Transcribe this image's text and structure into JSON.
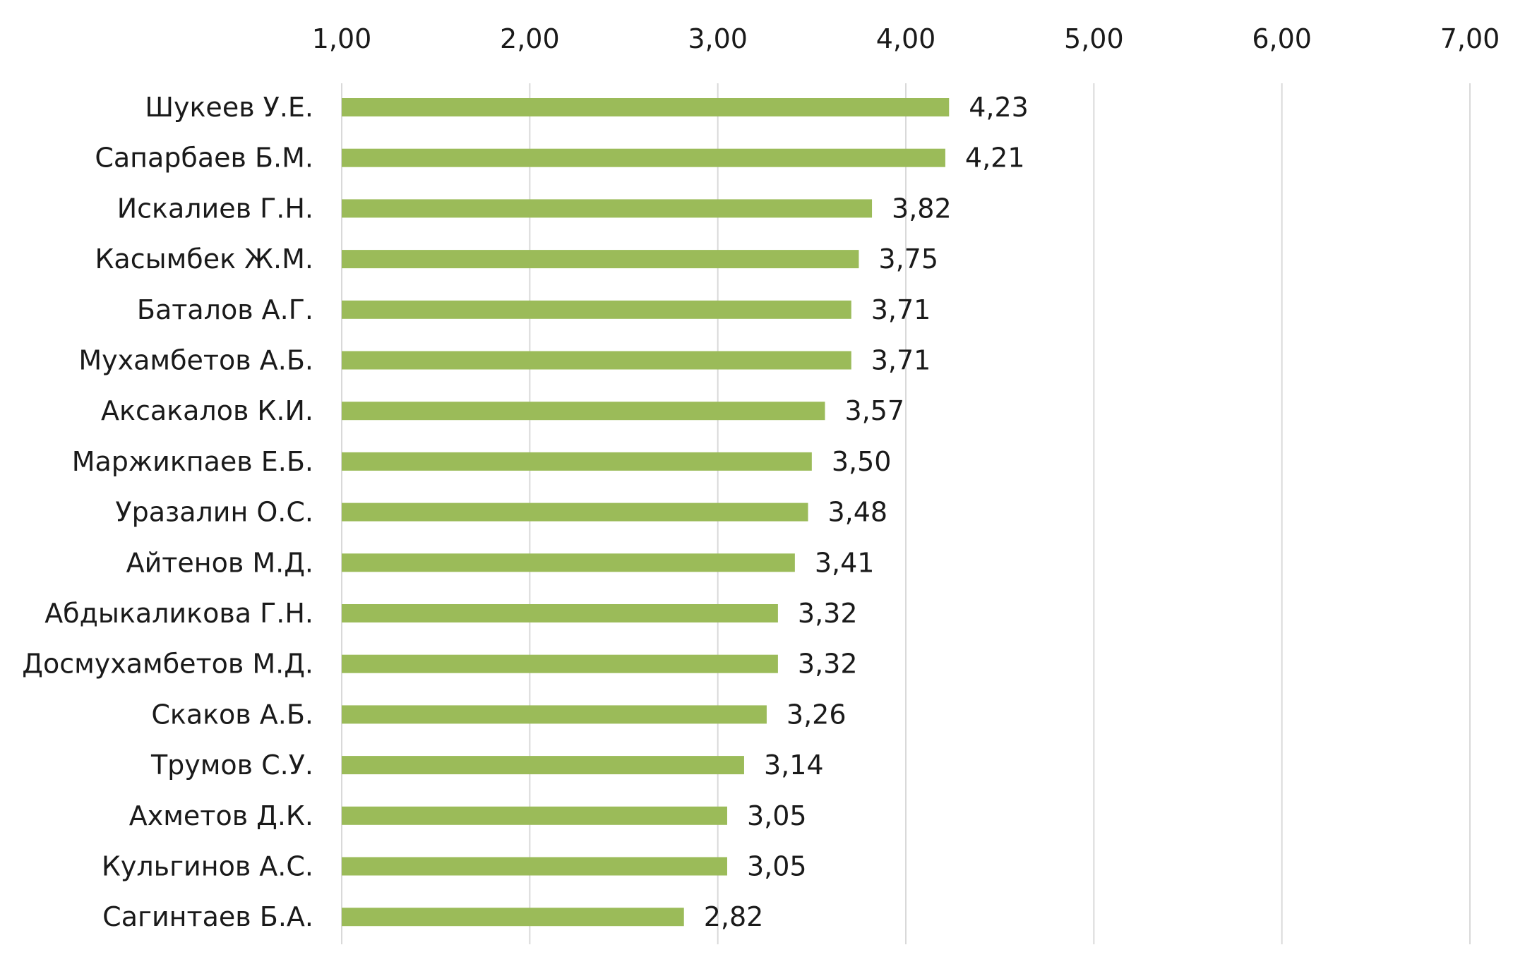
{
  "chart_data": {
    "type": "bar",
    "orientation": "horizontal",
    "title": "",
    "xlabel": "",
    "ylabel": "",
    "xlim": [
      1,
      7
    ],
    "x_ticks": [
      "1,00",
      "2,00",
      "3,00",
      "4,00",
      "5,00",
      "6,00",
      "7,00"
    ],
    "x_tick_values": [
      1,
      2,
      3,
      4,
      5,
      6,
      7
    ],
    "grid": "vertical",
    "legend": "none",
    "bar_color": "#9bbb59",
    "categories": [
      "Шукеев У.Е.",
      "Сапарбаев Б.М.",
      "Искалиев Г.Н.",
      "Касымбек Ж.М.",
      "Баталов А.Г.",
      "Мухамбетов А.Б.",
      "Аксакалов К.И.",
      "Маржикпаев Е.Б.",
      "Уразалин О.С.",
      "Айтенов М.Д.",
      "Абдыкаликова Г.Н.",
      "Досмухамбетов М.Д.",
      "Скаков А.Б.",
      "Трумов С.У.",
      "Ахметов Д.К.",
      "Кульгинов А.С.",
      "Сагинтаев Б.А."
    ],
    "values": [
      4.23,
      4.21,
      3.82,
      3.75,
      3.71,
      3.71,
      3.57,
      3.5,
      3.48,
      3.41,
      3.32,
      3.32,
      3.26,
      3.14,
      3.05,
      3.05,
      2.82
    ],
    "value_labels": [
      "4,23",
      "4,21",
      "3,82",
      "3,75",
      "3,71",
      "3,71",
      "3,57",
      "3,50",
      "3,48",
      "3,41",
      "3,32",
      "3,32",
      "3,26",
      "3,14",
      "3,05",
      "3,05",
      "2,82"
    ]
  }
}
